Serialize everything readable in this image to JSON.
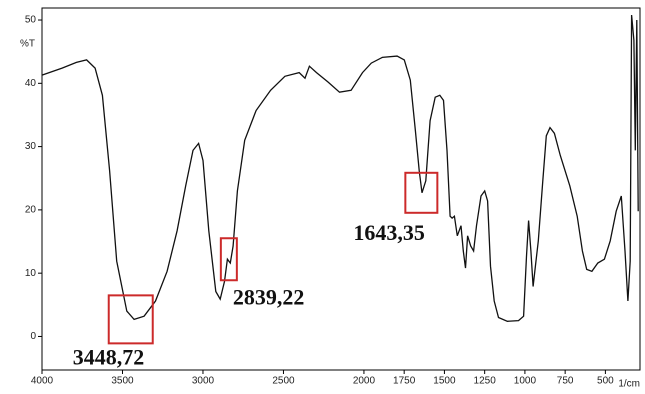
{
  "chart_data": {
    "type": "line",
    "y_label": "%T",
    "x_label": "1/cm",
    "xlim": [
      4000,
      285
    ],
    "ylim": [
      -5.3,
      51.9
    ],
    "xticks": [
      4000,
      3500,
      3000,
      2500,
      2000,
      1750,
      1500,
      1250,
      1000,
      750,
      500
    ],
    "yticks": [
      0,
      10,
      20,
      30,
      40,
      50
    ],
    "color": "#111111",
    "annotation_color": "#cc2a2a",
    "annotations": [
      {
        "value": 3448.72,
        "label": "3448,72"
      },
      {
        "value": 2839.22,
        "label": "2839,22"
      },
      {
        "value": 1643.35,
        "label": "1643,35"
      }
    ],
    "x": [
      4000,
      3875,
      3786,
      3723,
      3670,
      3625,
      3580,
      3536,
      3473,
      3428,
      3366,
      3295,
      3223,
      3161,
      3107,
      3062,
      3027,
      3000,
      2964,
      2920,
      2893,
      2866,
      2848,
      2830,
      2813,
      2786,
      2741,
      2670,
      2580,
      2491,
      2402,
      2366,
      2339,
      2295,
      2223,
      2152,
      2080,
      2009,
      1954,
      1886,
      1794,
      1749,
      1712,
      1680,
      1657,
      1639,
      1616,
      1589,
      1557,
      1529,
      1506,
      1484,
      1465,
      1452,
      1438,
      1420,
      1397,
      1383,
      1369,
      1356,
      1337,
      1319,
      1301,
      1273,
      1250,
      1232,
      1214,
      1191,
      1164,
      1109,
      1040,
      1008,
      990,
      977,
      963,
      949,
      935,
      917,
      889,
      867,
      844,
      817,
      780,
      721,
      675,
      643,
      616,
      584,
      547,
      506,
      470,
      433,
      401,
      378,
      360,
      346,
      337,
      323,
      314,
      305,
      296
    ],
    "values": [
      41.3,
      42.4,
      43.3,
      43.7,
      42.4,
      38.1,
      26.2,
      11.9,
      4.0,
      2.7,
      3.2,
      5.6,
      10.3,
      16.7,
      23.8,
      29.4,
      30.5,
      27.8,
      16.7,
      7.1,
      5.9,
      8.7,
      12.2,
      11.6,
      14.3,
      23.0,
      31.0,
      35.7,
      38.9,
      41.1,
      41.7,
      40.8,
      42.7,
      41.7,
      40.2,
      38.6,
      38.9,
      41.7,
      43.2,
      44.1,
      44.3,
      43.7,
      40.5,
      32.5,
      26.2,
      22.7,
      24.6,
      34.1,
      37.8,
      38.1,
      37.3,
      29.4,
      19.0,
      18.7,
      19.0,
      15.9,
      17.5,
      13.5,
      10.8,
      15.9,
      14.3,
      13.5,
      17.5,
      22.2,
      23.0,
      21.4,
      11.1,
      5.6,
      3.0,
      2.4,
      2.5,
      3.2,
      12.7,
      18.3,
      13.5,
      7.9,
      11.1,
      15.1,
      24.6,
      31.7,
      33.0,
      32.1,
      28.6,
      23.8,
      19.0,
      13.5,
      10.6,
      10.3,
      11.6,
      12.2,
      15.1,
      19.8,
      22.2,
      13.5,
      5.6,
      11.9,
      50.8,
      46.8,
      29.4,
      50.0,
      19.8
    ]
  }
}
